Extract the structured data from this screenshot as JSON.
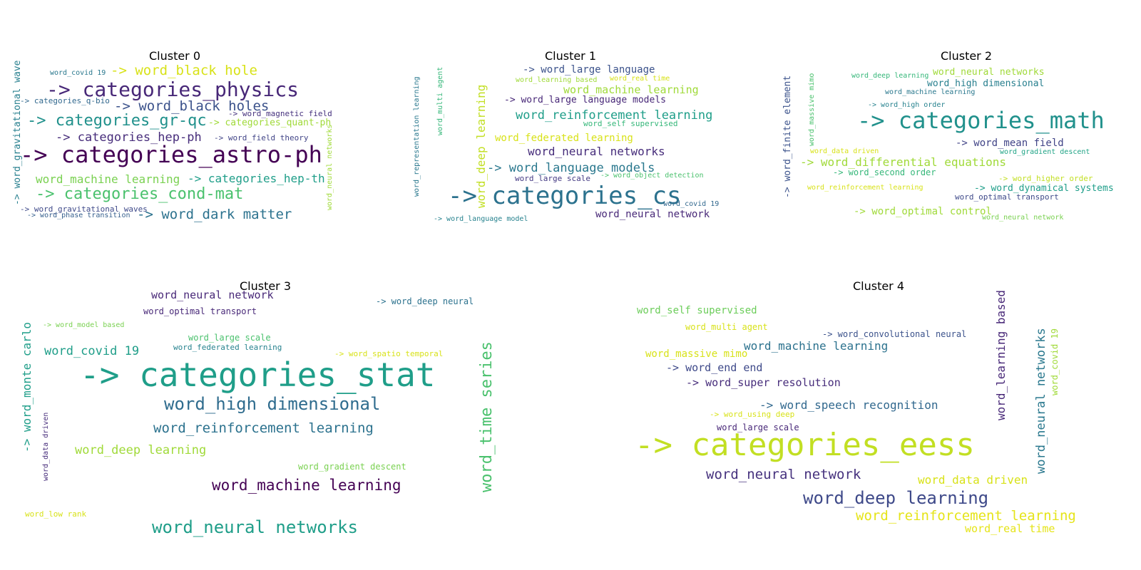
{
  "chart_data": [
    {
      "type": "wordcloud",
      "title": "Cluster 0",
      "words": [
        {
          "text": "word_covid 19",
          "color": "#2a788e",
          "size": 10
        },
        {
          "text": "-> word_black hole",
          "color": "#d8e219",
          "size": 19
        },
        {
          "text": "-> categories_physics",
          "color": "#482878",
          "size": 28
        },
        {
          "text": "-> categories_q-bio",
          "color": "#31688e",
          "size": 11
        },
        {
          "text": "-> word_black holes",
          "color": "#3b528b",
          "size": 19
        },
        {
          "text": "-> word_magnetic field",
          "color": "#46327e",
          "size": 11
        },
        {
          "text": "-> categories_gr-qc",
          "color": "#21918c",
          "size": 22
        },
        {
          "text": "-> categories_quant-ph",
          "color": "#a0da39",
          "size": 13
        },
        {
          "text": "-> categories_hep-ph",
          "color": "#472d7b",
          "size": 17
        },
        {
          "text": "-> word_field theory",
          "color": "#414487",
          "size": 11
        },
        {
          "text": "-> categories_astro-ph",
          "color": "#440154",
          "size": 32
        },
        {
          "text": "word_machine learning",
          "color": "#7ad151",
          "size": 16
        },
        {
          "text": "-> categories_hep-th",
          "color": "#1f9e89",
          "size": 16
        },
        {
          "text": "-> categories_cond-mat",
          "color": "#4ac16d",
          "size": 22
        },
        {
          "text": "-> word_gravitational waves",
          "color": "#3e4989",
          "size": 11
        },
        {
          "text": "-> word_phase transition",
          "color": "#355f8d",
          "size": 10
        },
        {
          "text": "-> word_dark matter",
          "color": "#2c728e",
          "size": 19
        },
        {
          "text": "-> word_gravitational wave",
          "color": "#277f8e",
          "size": 13,
          "vertical": true
        },
        {
          "text": "word_neural networks",
          "color": "#a0da39",
          "size": 10,
          "vertical": true
        }
      ]
    },
    {
      "type": "wordcloud",
      "title": "Cluster 1",
      "words": [
        {
          "text": "-> word_large language",
          "color": "#3b528b",
          "size": 14
        },
        {
          "text": "word_learning based",
          "color": "#a0da39",
          "size": 10
        },
        {
          "text": "word_real time",
          "color": "#d8e219",
          "size": 10
        },
        {
          "text": "word_machine learning",
          "color": "#a0da39",
          "size": 15
        },
        {
          "text": "-> word_large language models",
          "color": "#482878",
          "size": 13
        },
        {
          "text": "word_reinforcement learning",
          "color": "#1f9e89",
          "size": 17
        },
        {
          "text": "word_self supervised",
          "color": "#35b779",
          "size": 11
        },
        {
          "text": "word_federated learning",
          "color": "#d8e219",
          "size": 14
        },
        {
          "text": "word_neural networks",
          "color": "#472d7b",
          "size": 16
        },
        {
          "text": "-> word_language models",
          "color": "#2a788e",
          "size": 17
        },
        {
          "text": "word_large scale",
          "color": "#443983",
          "size": 11
        },
        {
          "text": "-> word_object detection",
          "color": "#4ac16d",
          "size": 10
        },
        {
          "text": "-> categories_cs",
          "color": "#2c728e",
          "size": 34
        },
        {
          "text": "word_covid 19",
          "color": "#31688e",
          "size": 10
        },
        {
          "text": "word_neural network",
          "color": "#482878",
          "size": 14
        },
        {
          "text": "-> word_language model",
          "color": "#26828e",
          "size": 10
        },
        {
          "text": "word_representation learning",
          "color": "#2a788e",
          "size": 10,
          "vertical": true
        },
        {
          "text": "word_multi agent",
          "color": "#35b779",
          "size": 10,
          "vertical": true
        },
        {
          "text": "word_deep learning",
          "color": "#c2df23",
          "size": 16,
          "vertical": true
        }
      ]
    },
    {
      "type": "wordcloud",
      "title": "Cluster 2",
      "words": [
        {
          "text": "word_deep learning",
          "color": "#35b779",
          "size": 10
        },
        {
          "text": "word_neural networks",
          "color": "#a0da39",
          "size": 13
        },
        {
          "text": "word_high dimensional",
          "color": "#277f8e",
          "size": 13
        },
        {
          "text": "word_machine learning",
          "color": "#2a788e",
          "size": 10
        },
        {
          "text": "-> word_high order",
          "color": "#26828e",
          "size": 10
        },
        {
          "text": "-> categories_math",
          "color": "#21918c",
          "size": 32
        },
        {
          "text": "-> word_mean field",
          "color": "#414487",
          "size": 14
        },
        {
          "text": "word_data driven",
          "color": "#d8e219",
          "size": 10
        },
        {
          "text": "word_gradient descent",
          "color": "#20a486",
          "size": 10
        },
        {
          "text": "-> word_differential equations",
          "color": "#a0da39",
          "size": 16
        },
        {
          "text": "-> word_second order",
          "color": "#35b779",
          "size": 12
        },
        {
          "text": "-> word_higher order",
          "color": "#c2df23",
          "size": 11
        },
        {
          "text": "word_reinforcement learning",
          "color": "#d8e219",
          "size": 10
        },
        {
          "text": "-> word_dynamical systems",
          "color": "#1f9e89",
          "size": 13
        },
        {
          "text": "word_optimal transport",
          "color": "#3e4989",
          "size": 11
        },
        {
          "text": "-> word_optimal control",
          "color": "#a0da39",
          "size": 14
        },
        {
          "text": "word_neural network",
          "color": "#7ad151",
          "size": 10
        },
        {
          "text": "-> word_finite element",
          "color": "#3b528b",
          "size": 13,
          "vertical": true
        },
        {
          "text": "word_massive mimo",
          "color": "#4ac16d",
          "size": 10,
          "vertical": true
        }
      ]
    },
    {
      "type": "wordcloud",
      "title": "Cluster 3",
      "words": [
        {
          "text": "word_neural network",
          "color": "#482878",
          "size": 15
        },
        {
          "text": "word_optimal transport",
          "color": "#482878",
          "size": 12
        },
        {
          "text": "-> word_deep neural",
          "color": "#2c728e",
          "size": 12
        },
        {
          "text": "-> word_model based",
          "color": "#7ad151",
          "size": 10
        },
        {
          "text": "word_large scale",
          "color": "#4ac16d",
          "size": 12
        },
        {
          "text": "word_covid 19",
          "color": "#1f9e89",
          "size": 17
        },
        {
          "text": "word_federated learning",
          "color": "#26828e",
          "size": 11
        },
        {
          "text": "-> word_spatio temporal",
          "color": "#d8e219",
          "size": 11
        },
        {
          "text": "-> categories_stat",
          "color": "#1f9e89",
          "size": 46
        },
        {
          "text": "word_high dimensional",
          "color": "#2f6c8e",
          "size": 24
        },
        {
          "text": "word_reinforcement learning",
          "color": "#2c728e",
          "size": 19
        },
        {
          "text": "word_deep learning",
          "color": "#a0da39",
          "size": 17
        },
        {
          "text": "word_gradient descent",
          "color": "#7ad151",
          "size": 12
        },
        {
          "text": "word_machine learning",
          "color": "#440154",
          "size": 21
        },
        {
          "text": "word_low rank",
          "color": "#d8e219",
          "size": 11
        },
        {
          "text": "word_neural networks",
          "color": "#1f9e89",
          "size": 24
        },
        {
          "text": "-> word_monte carlo",
          "color": "#1f9e89",
          "size": 16,
          "vertical": true
        },
        {
          "text": "word_data driven",
          "color": "#472d7b",
          "size": 10,
          "vertical": true
        },
        {
          "text": "word_time series",
          "color": "#4ac16d",
          "size": 22,
          "vertical": true
        }
      ]
    },
    {
      "type": "wordcloud",
      "title": "Cluster 4",
      "words": [
        {
          "text": "word_self supervised",
          "color": "#6ccd5a",
          "size": 14
        },
        {
          "text": "word_multi agent",
          "color": "#d8e219",
          "size": 12
        },
        {
          "text": "-> word_convolutional neural",
          "color": "#3b528b",
          "size": 12
        },
        {
          "text": "word_machine learning",
          "color": "#2c728e",
          "size": 16
        },
        {
          "text": "word_massive mimo",
          "color": "#d8e219",
          "size": 14
        },
        {
          "text": "-> word_end end",
          "color": "#3e4989",
          "size": 15
        },
        {
          "text": "-> word_super resolution",
          "color": "#472d7b",
          "size": 15
        },
        {
          "text": "-> word_speech recognition",
          "color": "#31688e",
          "size": 16
        },
        {
          "text": "-> word_using deep",
          "color": "#d8e219",
          "size": 11
        },
        {
          "text": "word_large scale",
          "color": "#482878",
          "size": 12
        },
        {
          "text": "-> categories_eess",
          "color": "#c2df23",
          "size": 44
        },
        {
          "text": "word_neural network",
          "color": "#46327e",
          "size": 19
        },
        {
          "text": "word_data driven",
          "color": "#d8e219",
          "size": 16
        },
        {
          "text": "word_deep learning",
          "color": "#3e4989",
          "size": 24
        },
        {
          "text": "word_reinforcement learning",
          "color": "#e5e419",
          "size": 19
        },
        {
          "text": "word_real time",
          "color": "#e5e419",
          "size": 15
        },
        {
          "text": "word_learning based",
          "color": "#482878",
          "size": 16,
          "vertical": true
        },
        {
          "text": "word_neural networks",
          "color": "#2a788e",
          "size": 17,
          "vertical": true
        },
        {
          "text": "word_covid 19",
          "color": "#a0da39",
          "size": 12,
          "vertical": true
        }
      ]
    }
  ]
}
